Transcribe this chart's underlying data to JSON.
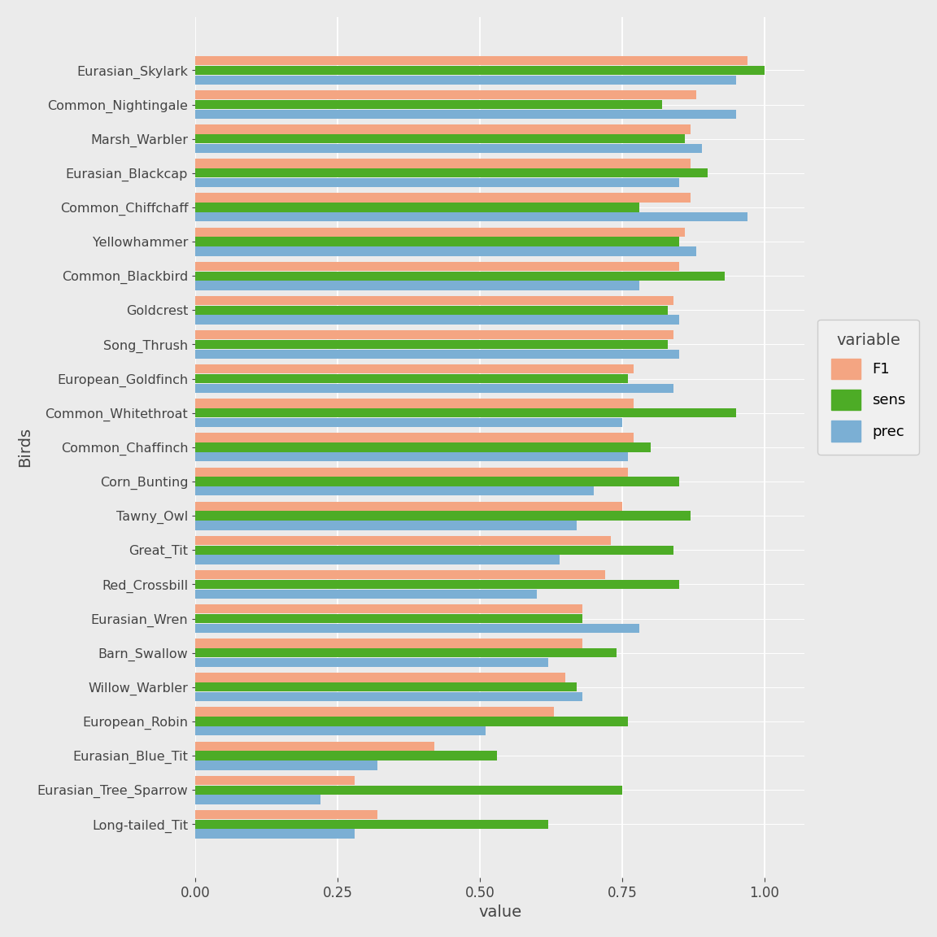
{
  "birds": [
    "Eurasian_Skylark",
    "Common_Nightingale",
    "Marsh_Warbler",
    "Eurasian_Blackcap",
    "Common_Chiffchaff",
    "Yellowhammer",
    "Common_Blackbird",
    "Goldcrest",
    "Song_Thrush",
    "European_Goldfinch",
    "Common_Whitethroat",
    "Common_Chaffinch",
    "Corn_Bunting",
    "Tawny_Owl",
    "Great_Tit",
    "Red_Crossbill",
    "Eurasian_Wren",
    "Barn_Swallow",
    "Willow_Warbler",
    "European_Robin",
    "Eurasian_Blue_Tit",
    "Eurasian_Tree_Sparrow",
    "Long-tailed_Tit"
  ],
  "F1": [
    0.97,
    0.88,
    0.87,
    0.87,
    0.87,
    0.86,
    0.85,
    0.84,
    0.84,
    0.77,
    0.77,
    0.77,
    0.76,
    0.75,
    0.73,
    0.72,
    0.68,
    0.68,
    0.65,
    0.63,
    0.42,
    0.28,
    0.32
  ],
  "sens": [
    1.0,
    0.82,
    0.86,
    0.9,
    0.78,
    0.85,
    0.93,
    0.83,
    0.83,
    0.76,
    0.95,
    0.8,
    0.85,
    0.87,
    0.84,
    0.85,
    0.68,
    0.74,
    0.67,
    0.76,
    0.53,
    0.75,
    0.62
  ],
  "prec": [
    0.95,
    0.95,
    0.89,
    0.85,
    0.97,
    0.88,
    0.78,
    0.85,
    0.85,
    0.84,
    0.75,
    0.76,
    0.7,
    0.67,
    0.64,
    0.6,
    0.78,
    0.62,
    0.68,
    0.51,
    0.32,
    0.22,
    0.28
  ],
  "color_F1": "#F4A582",
  "color_sens": "#4DAC26",
  "color_prec": "#7BAFD4",
  "xlabel": "value",
  "ylabel": "Birds",
  "bg_color": "#EBEBEB",
  "legend_title": "variable",
  "bar_height": 0.28,
  "xlim_max": 1.07
}
